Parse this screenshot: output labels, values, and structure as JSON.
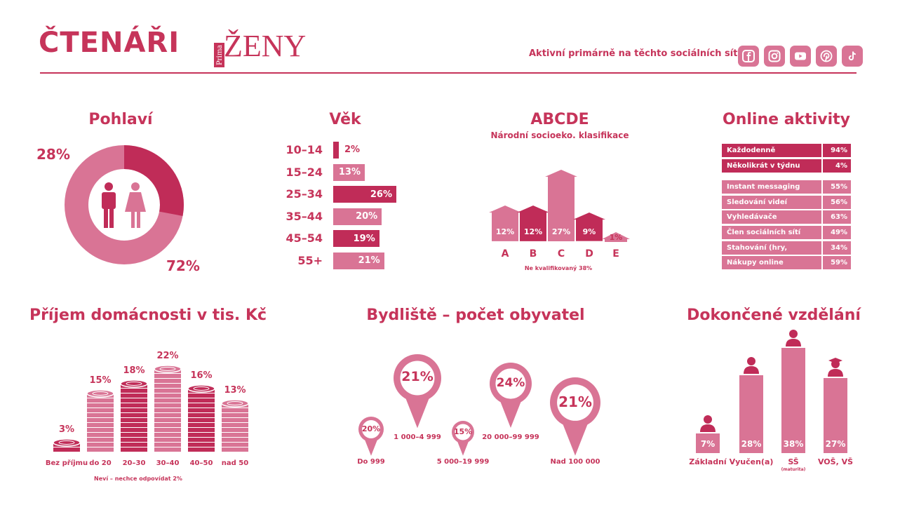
{
  "header": {
    "title": "ČTENÁŘI",
    "logo_text": "ŽENY",
    "logo_small": "Prima",
    "social_label": "Aktivní primárně na těchto sociálních sítích:",
    "social_icons": [
      "facebook-icon",
      "instagram-icon",
      "youtube-icon",
      "pinterest-icon",
      "tiktok-icon"
    ]
  },
  "colors": {
    "dark": "#c02c58",
    "light": "#d97495",
    "text": "#c6345a"
  },
  "sections": {
    "gender": {
      "title": "Pohlaví"
    },
    "age": {
      "title": "Věk"
    },
    "abcde": {
      "title": "ABCDE",
      "subtitle": "Národní socioeko. klasifikace",
      "note": "Ne kvalifikovaný 38%"
    },
    "online": {
      "title": "Online aktivity"
    },
    "income": {
      "title": "Příjem domácnosti v tis. Kč",
      "note": "Neví – nechce odpovídat 2%"
    },
    "residence": {
      "title": "Bydliště – počet obyvatel"
    },
    "education": {
      "title": "Dokončené vzdělání"
    }
  },
  "chart_data": [
    {
      "type": "pie",
      "title": "Pohlaví",
      "categories": [
        "Muži",
        "Ženy"
      ],
      "values": [
        28,
        72
      ],
      "labels": [
        "28%",
        "72%"
      ]
    },
    {
      "type": "bar",
      "title": "Věk",
      "categories": [
        "10–14",
        "15–24",
        "25–34",
        "35–44",
        "45–54",
        "55+"
      ],
      "values": [
        2,
        13,
        26,
        20,
        19,
        21
      ],
      "labels": [
        "2%",
        "13%",
        "26%",
        "20%",
        "19%",
        "21%"
      ]
    },
    {
      "type": "bar",
      "title": "ABCDE",
      "categories": [
        "A",
        "B",
        "C",
        "D",
        "E"
      ],
      "values": [
        12,
        12,
        27,
        9,
        1
      ],
      "labels": [
        "12%",
        "12%",
        "27%",
        "9%",
        "1%"
      ]
    },
    {
      "type": "table",
      "title": "Online aktivity",
      "rows": [
        {
          "label": "Každodenně",
          "value": "94%"
        },
        {
          "label": "Několikrát v týdnu",
          "value": "4%"
        },
        {
          "label": "Instant messaging",
          "value": "55%"
        },
        {
          "label": "Sledování videí",
          "value": "56%"
        },
        {
          "label": "Vyhledávače",
          "value": "63%"
        },
        {
          "label": "Člen sociálních sítí",
          "value": "49%"
        },
        {
          "label": "Stahování (hry, hudba…)",
          "value": "34%"
        },
        {
          "label": "Nákupy online",
          "value": "59%"
        }
      ]
    },
    {
      "type": "bar",
      "title": "Příjem domácnosti v tis. Kč",
      "categories": [
        "Bez příjmu",
        "do 20",
        "20–30",
        "30–40",
        "40–50",
        "nad 50"
      ],
      "values": [
        3,
        15,
        18,
        22,
        16,
        13
      ],
      "labels": [
        "3%",
        "15%",
        "18%",
        "22%",
        "16%",
        "13%"
      ]
    },
    {
      "type": "bar",
      "title": "Bydliště – počet obyvatel",
      "categories": [
        "Do 999",
        "1 000–4 999",
        "5 000–19 999",
        "20 000–99 999",
        "Nad 100 000"
      ],
      "values": [
        20,
        21,
        15,
        24,
        21
      ],
      "labels": [
        "20%",
        "21%",
        "15%",
        "24%",
        "21%"
      ]
    },
    {
      "type": "bar",
      "title": "Dokončené vzdělání",
      "categories": [
        "Základní",
        "Vyučen(a)",
        "SŠ",
        "VOŠ, VŠ"
      ],
      "category_notes": [
        "",
        "",
        "(maturita)",
        ""
      ],
      "values": [
        7,
        28,
        38,
        27
      ],
      "labels": [
        "7%",
        "28%",
        "38%",
        "27%"
      ]
    }
  ]
}
